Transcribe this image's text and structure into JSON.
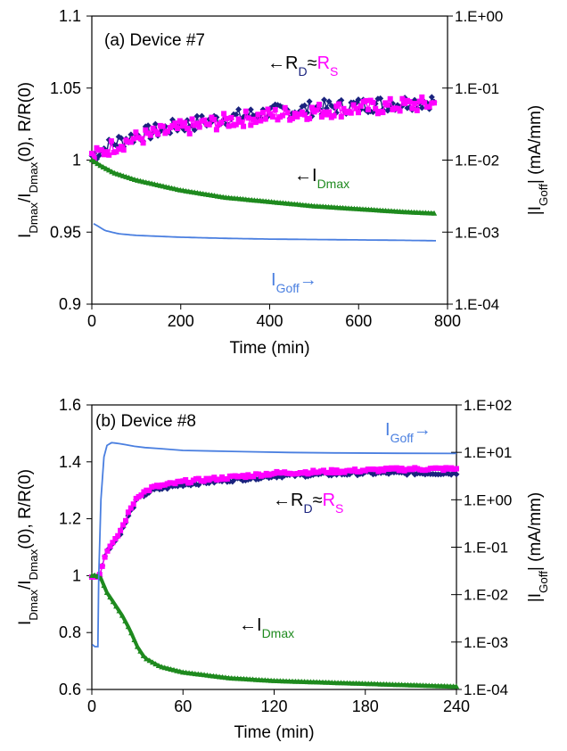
{
  "chart_data": [
    {
      "type": "line",
      "panel_label": "(a) Device #7",
      "xlabel": "Time (min)",
      "ylabel_left": {
        "parts": [
          "I",
          "Dmax",
          "/I",
          "Dmax",
          "(0), R/R(0)"
        ]
      },
      "ylabel_right": {
        "parts": [
          "|I",
          "Goff",
          "| (mA/mm)"
        ]
      },
      "xlim": [
        0,
        800
      ],
      "xticks": [
        0,
        200,
        400,
        600,
        800
      ],
      "ylim_left": [
        0.9,
        1.1
      ],
      "yticks_left": [
        "0.9",
        "0.95",
        "1",
        "1.05",
        "1.1"
      ],
      "ylim_right_log10": [
        -4,
        0
      ],
      "yticks_right": [
        "1.E-04",
        "1.E-03",
        "1.E-02",
        "1.E-01",
        "1.E+00"
      ],
      "grid": false,
      "annotations": [
        {
          "text": "←R",
          "sub": "D",
          "mid": "≈",
          "text2": "R",
          "sub2": "S"
        },
        {
          "text": "←I",
          "sub": "Dmax"
        },
        {
          "text": "I",
          "sub": "Goff",
          "arrow": "→"
        }
      ],
      "series": [
        {
          "role": "RD",
          "axis": "left",
          "color": "#1a237e",
          "x": [
            0,
            50,
            100,
            200,
            300,
            400,
            500,
            600,
            700,
            770
          ],
          "y": [
            1.003,
            1.012,
            1.017,
            1.024,
            1.029,
            1.033,
            1.036,
            1.038,
            1.04,
            1.041
          ]
        },
        {
          "role": "RS",
          "axis": "left",
          "color": "#ff00ff",
          "x": [
            0,
            50,
            100,
            200,
            300,
            400,
            500,
            600,
            700,
            770
          ],
          "y": [
            1.002,
            1.01,
            1.015,
            1.022,
            1.027,
            1.031,
            1.034,
            1.036,
            1.038,
            1.039
          ]
        },
        {
          "role": "IDmax",
          "axis": "left",
          "color": "#1e8a1e",
          "x": [
            0,
            20,
            50,
            100,
            200,
            300,
            400,
            500,
            600,
            700,
            770
          ],
          "y": [
            1.0,
            0.996,
            0.991,
            0.986,
            0.979,
            0.974,
            0.971,
            0.968,
            0.966,
            0.964,
            0.963
          ]
        },
        {
          "role": "IGoff",
          "axis": "right_log",
          "color": "#4a7fe0",
          "x": [
            0,
            10,
            30,
            60,
            100,
            200,
            300,
            400,
            500,
            600,
            700,
            770
          ],
          "y": [
            0.00135,
            0.00125,
            0.00105,
            0.00095,
            0.0009,
            0.00085,
            0.00082,
            0.0008,
            0.00079,
            0.00078,
            0.00077,
            0.00076
          ]
        }
      ]
    },
    {
      "type": "line",
      "panel_label": "(b) Device #8",
      "xlabel": "Time (min)",
      "ylabel_left": {
        "parts": [
          "I",
          "Dmax",
          "/I",
          "Dmax",
          "(0), R/R(0)"
        ]
      },
      "ylabel_right": {
        "parts": [
          "|I",
          "Goff",
          "| (mA/mm)"
        ]
      },
      "xlim": [
        0,
        240
      ],
      "xticks": [
        0,
        60,
        120,
        180,
        240
      ],
      "ylim_left": [
        0.6,
        1.6
      ],
      "yticks_left": [
        "0.6",
        "0.8",
        "1",
        "1.2",
        "1.4",
        "1.6"
      ],
      "ylim_right_log10": [
        -4,
        2
      ],
      "yticks_right": [
        "1.E-04",
        "1.E-03",
        "1.E-02",
        "1.E-01",
        "1.E+00",
        "1.E+01",
        "1.E+02"
      ],
      "grid": false,
      "annotations": [
        {
          "text": "I",
          "sub": "Goff",
          "arrow": "→"
        },
        {
          "text": "←R",
          "sub": "D",
          "mid": "≈",
          "text2": "R",
          "sub2": "S"
        },
        {
          "text": "←I",
          "sub": "Dmax"
        }
      ],
      "series": [
        {
          "role": "RD",
          "axis": "left",
          "color": "#1a237e",
          "x": [
            0,
            3,
            5,
            6,
            10,
            15,
            20,
            25,
            30,
            40,
            60,
            80,
            100,
            120,
            150,
            180,
            210,
            240
          ],
          "y": [
            1.0,
            1.0,
            1.0,
            1.02,
            1.09,
            1.12,
            1.16,
            1.22,
            1.27,
            1.3,
            1.32,
            1.33,
            1.34,
            1.35,
            1.355,
            1.36,
            1.36,
            1.36
          ]
        },
        {
          "role": "RS",
          "axis": "left",
          "color": "#ff00ff",
          "x": [
            0,
            3,
            5,
            6,
            10,
            15,
            20,
            25,
            30,
            40,
            60,
            80,
            100,
            120,
            150,
            180,
            210,
            240
          ],
          "y": [
            1.0,
            1.0,
            1.0,
            1.02,
            1.09,
            1.12,
            1.17,
            1.23,
            1.28,
            1.31,
            1.33,
            1.34,
            1.35,
            1.36,
            1.365,
            1.37,
            1.375,
            1.375
          ]
        },
        {
          "role": "IDmax",
          "axis": "left",
          "color": "#1e8a1e",
          "x": [
            0,
            3,
            6,
            10,
            15,
            20,
            25,
            30,
            35,
            45,
            60,
            90,
            120,
            150,
            180,
            210,
            240
          ],
          "y": [
            1.0,
            1.0,
            0.99,
            0.94,
            0.9,
            0.86,
            0.81,
            0.75,
            0.71,
            0.68,
            0.66,
            0.64,
            0.63,
            0.625,
            0.62,
            0.615,
            0.61
          ]
        },
        {
          "role": "IGoff",
          "axis": "right_log",
          "color": "#4a7fe0",
          "x": [
            0,
            2,
            4,
            4.5,
            6,
            8,
            10,
            13,
            20,
            30,
            60,
            120,
            180,
            240
          ],
          "y": [
            0.0009,
            0.0008,
            0.0008,
            0.02,
            1.0,
            8.0,
            14.0,
            16.0,
            15.0,
            13.0,
            11.0,
            10.0,
            9.6,
            9.5
          ]
        }
      ]
    }
  ]
}
